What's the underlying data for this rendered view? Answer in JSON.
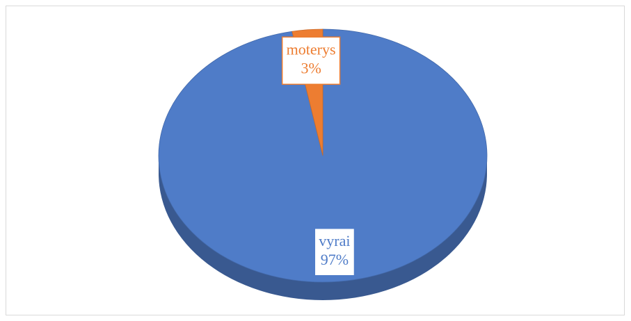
{
  "chart_data": {
    "type": "pie",
    "categories": [
      "vyrai",
      "moterys"
    ],
    "values": [
      97,
      3
    ],
    "value_labels": [
      "97%",
      "3%"
    ],
    "colors": [
      "#4f7cc8",
      "#ed7d31"
    ]
  }
}
